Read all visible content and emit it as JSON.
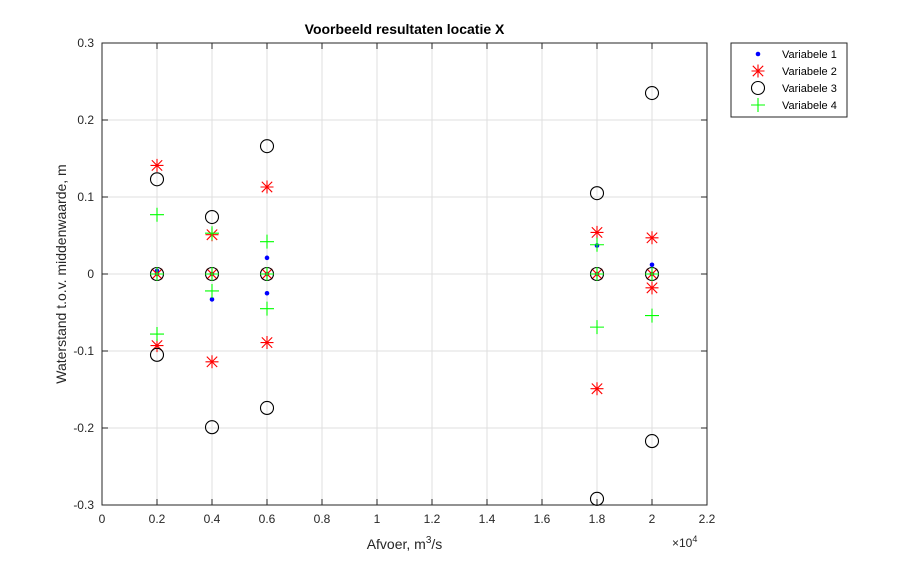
{
  "chart_data": {
    "type": "scatter",
    "title": "Voorbeeld resultaten locatie X",
    "xlabel_main": "Afvoer, m",
    "xlabel_sup": "3",
    "xlabel_tail": "/s",
    "ylabel": "Waterstand t.o.v. middenwaarde, m",
    "x_exponent_label": "×10",
    "x_exponent_power": "4",
    "xlim": [
      0,
      22000
    ],
    "ylim": [
      -0.3,
      0.3
    ],
    "x_ticks": [
      0,
      2000,
      4000,
      6000,
      8000,
      10000,
      12000,
      14000,
      16000,
      18000,
      20000,
      22000
    ],
    "x_tick_labels": [
      "0",
      "0.2",
      "0.4",
      "0.6",
      "0.8",
      "1",
      "1.2",
      "1.4",
      "1.6",
      "1.8",
      "2",
      "2.2"
    ],
    "y_ticks": [
      -0.3,
      -0.2,
      -0.1,
      0,
      0.1,
      0.2,
      0.3
    ],
    "y_tick_labels": [
      "-0.3",
      "-0.2",
      "-0.1",
      "0",
      "0.1",
      "0.2",
      "0.3"
    ],
    "grid": true,
    "legend_position": "outside-top-right",
    "series": [
      {
        "name": "Variabele 1",
        "marker": "dot",
        "color": "#0000ff",
        "points": [
          [
            2000,
            0.0
          ],
          [
            2000,
            0.004
          ],
          [
            4000,
            0.0
          ],
          [
            4000,
            -0.033
          ],
          [
            6000,
            0.0
          ],
          [
            6000,
            0.021
          ],
          [
            6000,
            -0.025
          ],
          [
            18000,
            0.0
          ],
          [
            18000,
            0.037
          ],
          [
            20000,
            0.0
          ],
          [
            20000,
            0.012
          ]
        ]
      },
      {
        "name": "Variabele 2",
        "marker": "asterisk",
        "color": "#ff0000",
        "points": [
          [
            2000,
            0.141
          ],
          [
            2000,
            0.0
          ],
          [
            2000,
            -0.093
          ],
          [
            4000,
            0.051
          ],
          [
            4000,
            0.0
          ],
          [
            4000,
            -0.114
          ],
          [
            6000,
            0.113
          ],
          [
            6000,
            0.0
          ],
          [
            6000,
            -0.089
          ],
          [
            18000,
            0.054
          ],
          [
            18000,
            0.0
          ],
          [
            18000,
            -0.149
          ],
          [
            20000,
            0.047
          ],
          [
            20000,
            0.0
          ],
          [
            20000,
            -0.018
          ]
        ]
      },
      {
        "name": "Variabele 3",
        "marker": "circle",
        "color": "#000000",
        "points": [
          [
            2000,
            0.123
          ],
          [
            2000,
            0.0
          ],
          [
            2000,
            -0.105
          ],
          [
            4000,
            0.074
          ],
          [
            4000,
            0.0
          ],
          [
            4000,
            -0.199
          ],
          [
            6000,
            0.166
          ],
          [
            6000,
            0.0
          ],
          [
            6000,
            -0.174
          ],
          [
            18000,
            0.105
          ],
          [
            18000,
            0.0
          ],
          [
            18000,
            -0.292
          ],
          [
            20000,
            0.235
          ],
          [
            20000,
            0.0
          ],
          [
            20000,
            -0.217
          ]
        ]
      },
      {
        "name": "Variabele 4",
        "marker": "plus",
        "color": "#00ff00",
        "points": [
          [
            2000,
            0.077
          ],
          [
            2000,
            0.0
          ],
          [
            2000,
            -0.078
          ],
          [
            4000,
            0.053
          ],
          [
            4000,
            0.0
          ],
          [
            4000,
            -0.022
          ],
          [
            6000,
            0.042
          ],
          [
            6000,
            0.0
          ],
          [
            6000,
            -0.045
          ],
          [
            18000,
            0.038
          ],
          [
            18000,
            0.0
          ],
          [
            18000,
            -0.069
          ],
          [
            20000,
            0.0
          ],
          [
            20000,
            -0.054
          ]
        ]
      }
    ]
  }
}
